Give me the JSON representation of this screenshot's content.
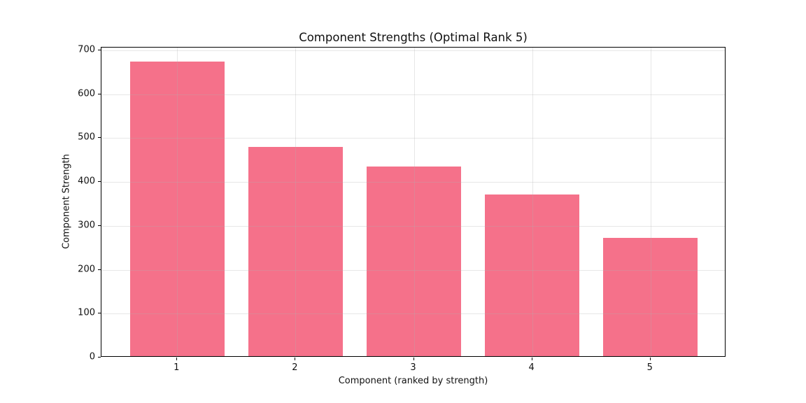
{
  "figure": {
    "background_color": "#ffffff"
  },
  "chart_data": {
    "type": "bar",
    "title": "Component Strengths (Optimal Rank 5)",
    "xlabel": "Component (ranked by strength)",
    "ylabel": "Component Strength",
    "categories": [
      "1",
      "2",
      "3",
      "4",
      "5"
    ],
    "values": [
      671,
      477,
      432,
      368,
      269
    ],
    "yticks": [
      0,
      100,
      200,
      300,
      400,
      500,
      600,
      700
    ],
    "ylim": [
      0,
      706
    ],
    "xlim": [
      0.36,
      5.64
    ],
    "bar_positions": [
      1,
      2,
      3,
      4,
      5
    ],
    "bar_width_units": 0.8,
    "bar_color": "#F5718A",
    "grid": true,
    "grid_color": "#B0B0B0",
    "grid_alpha": 0.3,
    "grid_above_bars": true,
    "spine_color": "#000000",
    "text_color": "#111111",
    "legend_position": "none"
  }
}
